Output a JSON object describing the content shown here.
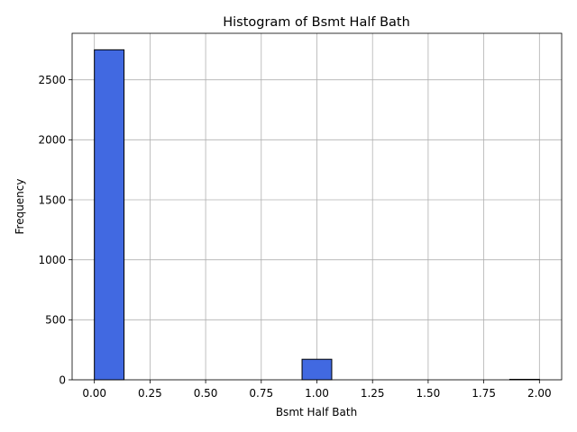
{
  "chart_data": {
    "type": "bar",
    "title": "Histogram of Bsmt Half Bath",
    "xlabel": "Bsmt Half Bath",
    "ylabel": "Frequency",
    "bins": [
      {
        "x_start": 0.0,
        "x_end": 0.1333,
        "count": 2750
      },
      {
        "x_start": 0.1333,
        "x_end": 0.2667,
        "count": 0
      },
      {
        "x_start": 0.2667,
        "x_end": 0.4,
        "count": 0
      },
      {
        "x_start": 0.4,
        "x_end": 0.5333,
        "count": 0
      },
      {
        "x_start": 0.5333,
        "x_end": 0.6667,
        "count": 0
      },
      {
        "x_start": 0.6667,
        "x_end": 0.8,
        "count": 0
      },
      {
        "x_start": 0.8,
        "x_end": 0.9333,
        "count": 0
      },
      {
        "x_start": 0.9333,
        "x_end": 1.0667,
        "count": 171
      },
      {
        "x_start": 1.0667,
        "x_end": 1.2,
        "count": 0
      },
      {
        "x_start": 1.2,
        "x_end": 1.3333,
        "count": 0
      },
      {
        "x_start": 1.3333,
        "x_end": 1.4667,
        "count": 0
      },
      {
        "x_start": 1.4667,
        "x_end": 1.6,
        "count": 0
      },
      {
        "x_start": 1.6,
        "x_end": 1.7333,
        "count": 0
      },
      {
        "x_start": 1.7333,
        "x_end": 1.8667,
        "count": 0
      },
      {
        "x_start": 1.8667,
        "x_end": 2.0,
        "count": 4
      }
    ],
    "xlim": [
      -0.1,
      2.1
    ],
    "ylim": [
      0,
      2887.5
    ],
    "xticks": [
      0.0,
      0.25,
      0.5,
      0.75,
      1.0,
      1.25,
      1.5,
      1.75,
      2.0
    ],
    "xtick_labels": [
      "0.00",
      "0.25",
      "0.50",
      "0.75",
      "1.00",
      "1.25",
      "1.50",
      "1.75",
      "2.00"
    ],
    "yticks": [
      0,
      500,
      1000,
      1500,
      2000,
      2500
    ],
    "ytick_labels": [
      "0",
      "500",
      "1000",
      "1500",
      "2000",
      "2500"
    ],
    "grid": true,
    "bar_color": "#4169e1",
    "edge_color": "#000000"
  }
}
